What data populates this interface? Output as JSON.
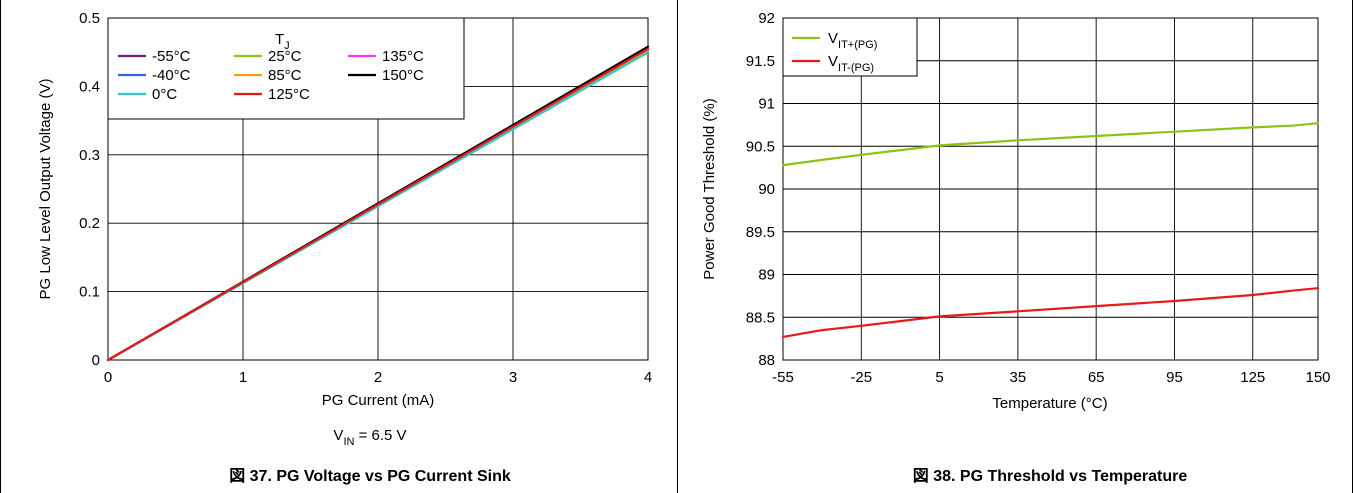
{
  "charts": [
    {
      "caption": "図 37. PG Voltage vs PG Current Sink",
      "condition": {
        "main": "V",
        "sub": "IN",
        "rest": " = 6.5 V"
      }
    },
    {
      "caption": "図 38. PG Threshold vs Temperature"
    }
  ],
  "chart_data": [
    {
      "type": "line",
      "title": "",
      "xlabel": "PG Current (mA)",
      "ylabel": "PG Low Level Output Voltage (V)",
      "xlim": [
        0,
        4
      ],
      "ylim": [
        0,
        0.5
      ],
      "xticks": [
        "0",
        "1",
        "2",
        "3",
        "4"
      ],
      "yticks": [
        "0",
        "0.1",
        "0.2",
        "0.3",
        "0.4",
        "0.5"
      ],
      "grid": true,
      "legend_title": {
        "main": "T",
        "sub": "J"
      },
      "legend_placement": "top-left",
      "series": [
        {
          "name": "-55°C",
          "color": "#7a1a8c",
          "x": [
            0,
            4
          ],
          "y": [
            0,
            0.452
          ]
        },
        {
          "name": "25°C",
          "color": "#8cc21a",
          "x": [
            0,
            4
          ],
          "y": [
            0,
            0.45
          ]
        },
        {
          "name": "135°C",
          "color": "#ff33ff",
          "x": [
            0,
            4
          ],
          "y": [
            0,
            0.455
          ]
        },
        {
          "name": "-40°C",
          "color": "#3366e6",
          "x": [
            0,
            4
          ],
          "y": [
            0,
            0.451
          ]
        },
        {
          "name": "85°C",
          "color": "#f29a1a",
          "x": [
            0,
            4
          ],
          "y": [
            0,
            0.453
          ]
        },
        {
          "name": "150°C",
          "color": "#000000",
          "x": [
            0,
            4
          ],
          "y": [
            0,
            0.458
          ]
        },
        {
          "name": "0°C",
          "color": "#33c4cc",
          "x": [
            0,
            4
          ],
          "y": [
            0,
            0.45
          ]
        },
        {
          "name": "125°C",
          "color": "#e61a1a",
          "x": [
            0,
            4
          ],
          "y": [
            0,
            0.455
          ]
        }
      ]
    },
    {
      "type": "line",
      "title": "",
      "xlabel": "Temperature (°C)",
      "ylabel": "Power Good Threshold (%)",
      "xlim": [
        -55,
        150
      ],
      "ylim": [
        88,
        92
      ],
      "xticks": [
        "-55",
        "-25",
        "5",
        "35",
        "65",
        "95",
        "125",
        "150"
      ],
      "yticks": [
        "88",
        "88.5",
        "89",
        "89.5",
        "90",
        "90.5",
        "91",
        "91.5",
        "92"
      ],
      "grid": true,
      "legend_placement": "top-left",
      "series": [
        {
          "name": "V",
          "name_sub": "IT+(PG)",
          "color": "#8cc21a",
          "x": [
            -55,
            -40,
            -25,
            5,
            35,
            65,
            95,
            125,
            140,
            150
          ],
          "y": [
            90.28,
            90.34,
            90.4,
            90.51,
            90.57,
            90.62,
            90.67,
            90.72,
            90.74,
            90.77
          ]
        },
        {
          "name": "V",
          "name_sub": "IT-(PG)",
          "color": "#e61a1a",
          "x": [
            -55,
            -40,
            -25,
            5,
            35,
            65,
            95,
            125,
            140,
            150
          ],
          "y": [
            88.27,
            88.35,
            88.4,
            88.51,
            88.57,
            88.63,
            88.69,
            88.76,
            88.81,
            88.84
          ]
        }
      ]
    }
  ]
}
